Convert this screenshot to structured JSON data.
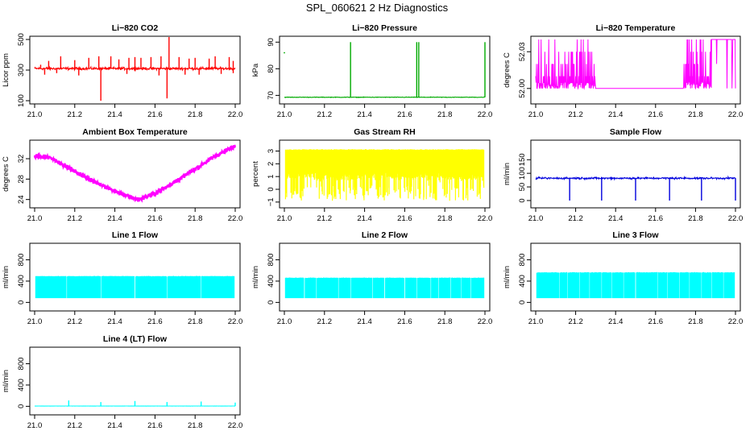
{
  "figure_title": "SPL_060621  2 Hz Diagnostics",
  "chart_data": [
    {
      "type": "line",
      "title": "Li−820 CO2",
      "xlabel": "",
      "ylabel": "Licor ppm",
      "xlim": [
        21.0,
        22.0
      ],
      "ylim": [
        100,
        500
      ],
      "xticks": [
        "21.0",
        "21.2",
        "21.4",
        "21.6",
        "21.8",
        "22.0"
      ],
      "yticks": [
        "100",
        "300",
        "500"
      ],
      "color": "#ff0000",
      "grid": false,
      "series": [
        {
          "baseline": 310,
          "noise": 12,
          "spikes_up": [
            [
              21.03,
              335
            ],
            [
              21.07,
              360
            ],
            [
              21.13,
              390
            ],
            [
              21.2,
              365
            ],
            [
              21.27,
              380
            ],
            [
              21.32,
              390
            ],
            [
              21.38,
              390
            ],
            [
              21.42,
              370
            ],
            [
              21.47,
              380
            ],
            [
              21.5,
              385
            ],
            [
              21.53,
              380
            ],
            [
              21.58,
              385
            ],
            [
              21.63,
              390
            ],
            [
              21.67,
              530
            ],
            [
              21.72,
              385
            ],
            [
              21.77,
              375
            ],
            [
              21.8,
              380
            ],
            [
              21.87,
              375
            ],
            [
              21.9,
              390
            ],
            [
              21.97,
              385
            ],
            [
              21.99,
              360
            ]
          ],
          "spikes_down": [
            [
              21.05,
              270
            ],
            [
              21.11,
              280
            ],
            [
              21.22,
              265
            ],
            [
              21.33,
              100
            ],
            [
              21.46,
              275
            ],
            [
              21.62,
              265
            ],
            [
              21.66,
              115
            ],
            [
              21.75,
              270
            ],
            [
              21.82,
              270
            ],
            [
              21.93,
              275
            ],
            [
              21.99,
              280
            ]
          ]
        }
      ]
    },
    {
      "type": "line",
      "title": "Li−820 Pressure",
      "xlabel": "",
      "ylabel": "kPa",
      "xlim": [
        21.0,
        22.0
      ],
      "ylim": [
        68,
        91
      ],
      "xticks": [
        "21.0",
        "21.2",
        "21.4",
        "21.6",
        "21.8",
        "22.0"
      ],
      "yticks": [
        "70",
        "80",
        "90"
      ],
      "color": "#00aa00",
      "grid": false,
      "series": [
        {
          "baseline": 69.3,
          "noise": 0.15,
          "spikes_up": [
            [
              21.33,
              90
            ],
            [
              21.66,
              90
            ],
            [
              21.67,
              90
            ],
            [
              22.0,
              90
            ]
          ],
          "spikes_down": [],
          "outliers": [
            [
              21.0,
              86
            ]
          ]
        }
      ]
    },
    {
      "type": "line",
      "title": "Li−820 Temperature",
      "xlabel": "",
      "ylabel": "degrees C",
      "xlim": [
        21.0,
        22.0
      ],
      "ylim": [
        51.99,
        52.04
      ],
      "xticks": [
        "21.0",
        "21.2",
        "21.4",
        "21.6",
        "21.8",
        "22.0"
      ],
      "yticks": [
        "52.00",
        "52.03"
      ],
      "color": "#ff00ff",
      "grid": false,
      "series": [
        {
          "levels": [
            52.0,
            52.01,
            52.02,
            52.03,
            52.04
          ],
          "low_value": 52.0
        }
      ]
    },
    {
      "type": "line",
      "title": "Ambient Box Temperature",
      "xlabel": "",
      "ylabel": "degrees C",
      "xlim": [
        21.0,
        22.0
      ],
      "ylim": [
        23,
        35
      ],
      "xticks": [
        "21.0",
        "21.2",
        "21.4",
        "21.6",
        "21.8",
        "22.0"
      ],
      "yticks": [
        "24",
        "28",
        "32"
      ],
      "color": "#ff00ff",
      "grid": false,
      "series": [
        {
          "points": [
            [
              21.0,
              32.5
            ],
            [
              21.08,
              32.2
            ],
            [
              21.2,
              29.5
            ],
            [
              21.35,
              26.5
            ],
            [
              21.45,
              24.8
            ],
            [
              21.52,
              24.0
            ],
            [
              21.6,
              25.2
            ],
            [
              21.7,
              27.5
            ],
            [
              21.8,
              30.0
            ],
            [
              21.9,
              32.5
            ],
            [
              22.0,
              34.5
            ]
          ],
          "noise": 0.6
        }
      ]
    },
    {
      "type": "area",
      "title": "Gas Stream RH",
      "xlabel": "",
      "ylabel": "percent",
      "xlim": [
        21.0,
        22.0
      ],
      "ylim": [
        -1.2,
        3.6
      ],
      "xticks": [
        "21.0",
        "21.2",
        "21.4",
        "21.6",
        "21.8",
        "22.0"
      ],
      "yticks": [
        "−1",
        "0",
        "1",
        "2",
        "3"
      ],
      "color": "#ffff00",
      "grid": false,
      "series": [
        {
          "top": 3.1,
          "bottom_typical": 1.2,
          "bottom_min": -0.9
        }
      ]
    },
    {
      "type": "line",
      "title": "Sample Flow",
      "xlabel": "",
      "ylabel": "ml/min",
      "xlim": [
        21.0,
        22.0
      ],
      "ylim": [
        -15,
        210
      ],
      "xticks": [
        "21.0",
        "21.2",
        "21.4",
        "21.6",
        "21.8",
        "22.0"
      ],
      "yticks": [
        "0",
        "50",
        "100",
        "150"
      ],
      "color": "#0000dd",
      "grid": false,
      "series": [
        {
          "baseline": 82,
          "noise": 5,
          "spikes_down": [
            [
              21.17,
              0
            ],
            [
              21.33,
              0
            ],
            [
              21.5,
              0
            ],
            [
              21.67,
              0
            ],
            [
              21.83,
              0
            ],
            [
              22.0,
              0
            ]
          ]
        }
      ]
    },
    {
      "type": "area",
      "title": "Line 1 Flow",
      "xlabel": "",
      "ylabel": "ml/min",
      "xlim": [
        21.0,
        22.0
      ],
      "ylim": [
        -100,
        1050
      ],
      "xticks": [
        "21.0",
        "21.2",
        "21.4",
        "21.6",
        "21.8",
        "22.0"
      ],
      "yticks": [
        "0",
        "400",
        "800"
      ],
      "color": "#00ffff",
      "grid": false,
      "series": [
        {
          "top": 490,
          "bottom": 80,
          "gaps": [
            21.16,
            21.33,
            21.5,
            21.66,
            21.83
          ]
        }
      ]
    },
    {
      "type": "area",
      "title": "Line 2 Flow",
      "xlabel": "",
      "ylabel": "ml/min",
      "xlim": [
        21.0,
        22.0
      ],
      "ylim": [
        -100,
        1050
      ],
      "xticks": [
        "21.0",
        "21.2",
        "21.4",
        "21.6",
        "21.8",
        "22.0"
      ],
      "yticks": [
        "0",
        "400",
        "800"
      ],
      "color": "#00ffff",
      "grid": false,
      "series": [
        {
          "top": 460,
          "bottom": 80,
          "gaps": [
            21.1,
            21.16,
            21.27,
            21.33,
            21.44,
            21.5,
            21.6,
            21.66,
            21.73,
            21.77,
            21.83,
            21.88,
            21.93
          ]
        }
      ]
    },
    {
      "type": "area",
      "title": "Line 3 Flow",
      "xlabel": "",
      "ylabel": "ml/min",
      "xlim": [
        21.0,
        22.0
      ],
      "ylim": [
        -100,
        1050
      ],
      "xticks": [
        "21.0",
        "21.2",
        "21.4",
        "21.6",
        "21.8",
        "22.0"
      ],
      "yticks": [
        "0",
        "400",
        "800"
      ],
      "color": "#00ffff",
      "grid": false,
      "series": [
        {
          "top": 560,
          "bottom": 80,
          "gaps": [
            21.12,
            21.16,
            21.22,
            21.27,
            21.33,
            21.38,
            21.44,
            21.5,
            21.61,
            21.66,
            21.72,
            21.77,
            21.83,
            21.88,
            21.94
          ]
        }
      ]
    },
    {
      "type": "line",
      "title": "Line 4 (LT) Flow",
      "xlabel": "",
      "ylabel": "ml/min",
      "xlim": [
        21.0,
        22.0
      ],
      "ylim": [
        -100,
        1050
      ],
      "xticks": [
        "21.0",
        "21.2",
        "21.4",
        "21.6",
        "21.8",
        "22.0"
      ],
      "yticks": [
        "0",
        "400",
        "800"
      ],
      "color": "#00ffff",
      "grid": false,
      "series": [
        {
          "baseline": 5,
          "noise": 2,
          "spikes_up": [
            [
              21.17,
              110
            ],
            [
              21.33,
              80
            ],
            [
              21.5,
              100
            ],
            [
              21.66,
              80
            ],
            [
              21.83,
              90
            ],
            [
              22.0,
              70
            ]
          ]
        }
      ]
    }
  ]
}
